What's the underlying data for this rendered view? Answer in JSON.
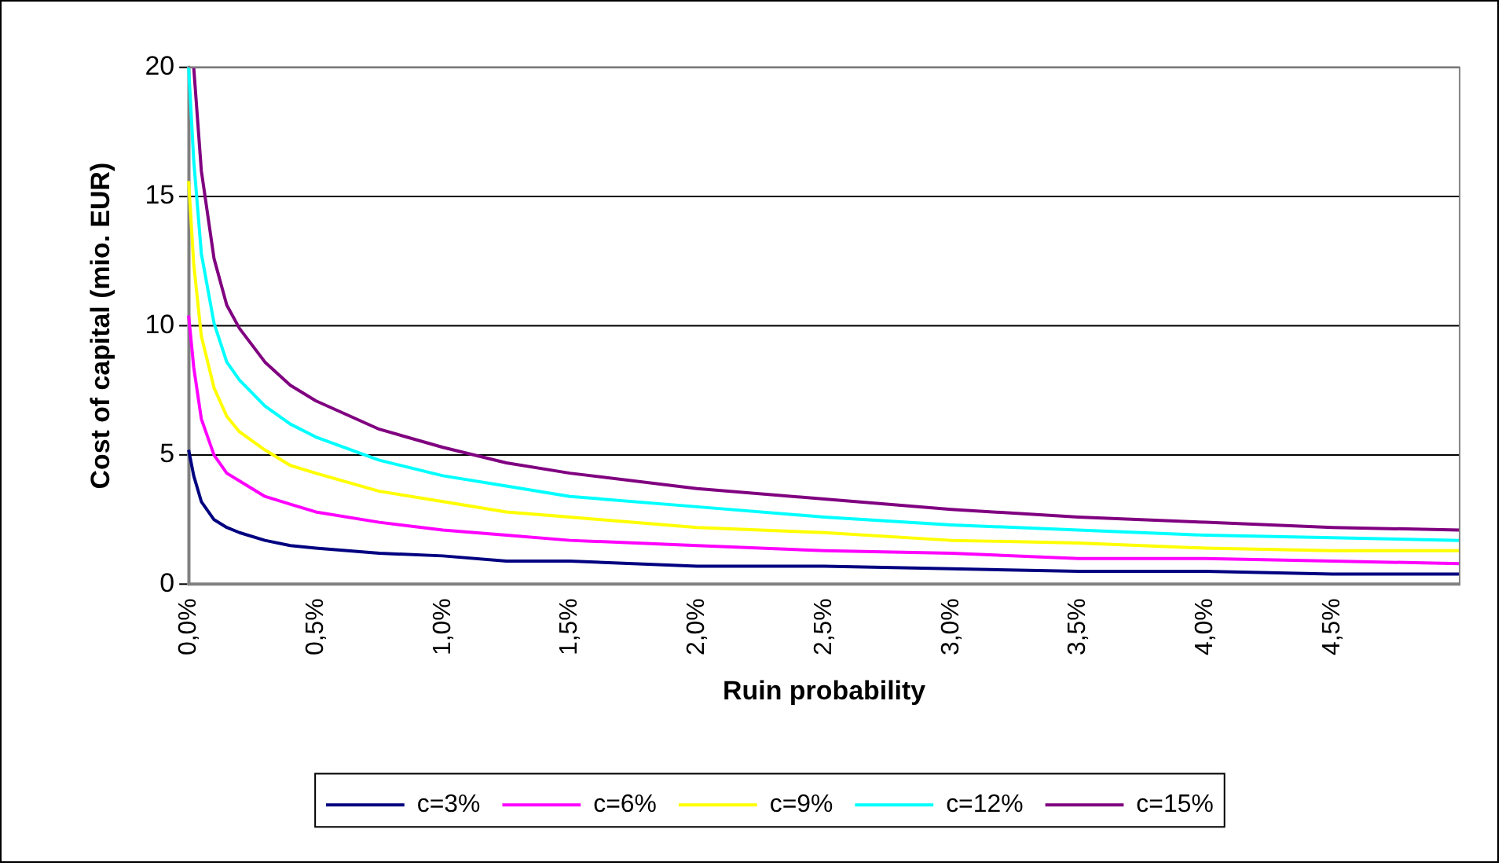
{
  "chart_data": {
    "type": "line",
    "xlabel": "Ruin probability",
    "ylabel": "Cost of capital (mio. EUR)",
    "x": [
      0,
      0.02,
      0.05,
      0.1,
      0.15,
      0.2,
      0.3,
      0.4,
      0.5,
      0.75,
      1,
      1.25,
      1.5,
      2,
      2.5,
      3,
      3.5,
      4,
      4.5,
      5
    ],
    "series": [
      {
        "name": "c=3%",
        "color": "#000080",
        "values": [
          5.2,
          4.2,
          3.2,
          2.5,
          2.2,
          2.0,
          1.7,
          1.5,
          1.4,
          1.2,
          1.1,
          0.9,
          0.9,
          0.7,
          0.7,
          0.6,
          0.5,
          0.5,
          0.4,
          0.4
        ]
      },
      {
        "name": "c=6%",
        "color": "#ff00ff",
        "values": [
          10.4,
          8.4,
          6.4,
          5.0,
          4.3,
          4.0,
          3.4,
          3.1,
          2.8,
          2.4,
          2.1,
          1.9,
          1.7,
          1.5,
          1.3,
          1.2,
          1.0,
          1.0,
          0.9,
          0.8
        ]
      },
      {
        "name": "c=9%",
        "color": "#ffff00",
        "values": [
          15.6,
          12.4,
          9.6,
          7.6,
          6.5,
          5.9,
          5.2,
          4.6,
          4.3,
          3.6,
          3.2,
          2.8,
          2.6,
          2.2,
          2.0,
          1.7,
          1.6,
          1.4,
          1.3,
          1.3
        ]
      },
      {
        "name": "c=12%",
        "color": "#00ffff",
        "values": [
          20,
          16.4,
          12.8,
          10.1,
          8.6,
          7.9,
          6.9,
          6.2,
          5.7,
          4.8,
          4.2,
          3.8,
          3.4,
          3.0,
          2.6,
          2.3,
          2.1,
          1.9,
          1.8,
          1.7
        ]
      },
      {
        "name": "c=15%",
        "color": "#800080",
        "values": [
          null,
          20,
          16,
          12.6,
          10.8,
          9.9,
          8.6,
          7.7,
          7.1,
          6.0,
          5.3,
          4.7,
          4.3,
          3.7,
          3.3,
          2.9,
          2.6,
          2.4,
          2.2,
          2.1
        ]
      }
    ],
    "xlim": [
      0,
      5
    ],
    "xticks": [
      {
        "value": 0,
        "label": "0,0%"
      },
      {
        "value": 0.5,
        "label": "0,5%"
      },
      {
        "value": 1,
        "label": "1,0%"
      },
      {
        "value": 1.5,
        "label": "1,5%"
      },
      {
        "value": 2,
        "label": "2,0%"
      },
      {
        "value": 2.5,
        "label": "2,5%"
      },
      {
        "value": 3,
        "label": "3,0%"
      },
      {
        "value": 3.5,
        "label": "3,5%"
      },
      {
        "value": 4,
        "label": "4,0%"
      },
      {
        "value": 4.5,
        "label": "4,5%"
      }
    ],
    "ylim": [
      0,
      20
    ],
    "yticks": [
      0,
      5,
      10,
      15,
      20
    ],
    "grid": "y",
    "legend": "bottom",
    "marker": "none",
    "line_style": "solid"
  }
}
